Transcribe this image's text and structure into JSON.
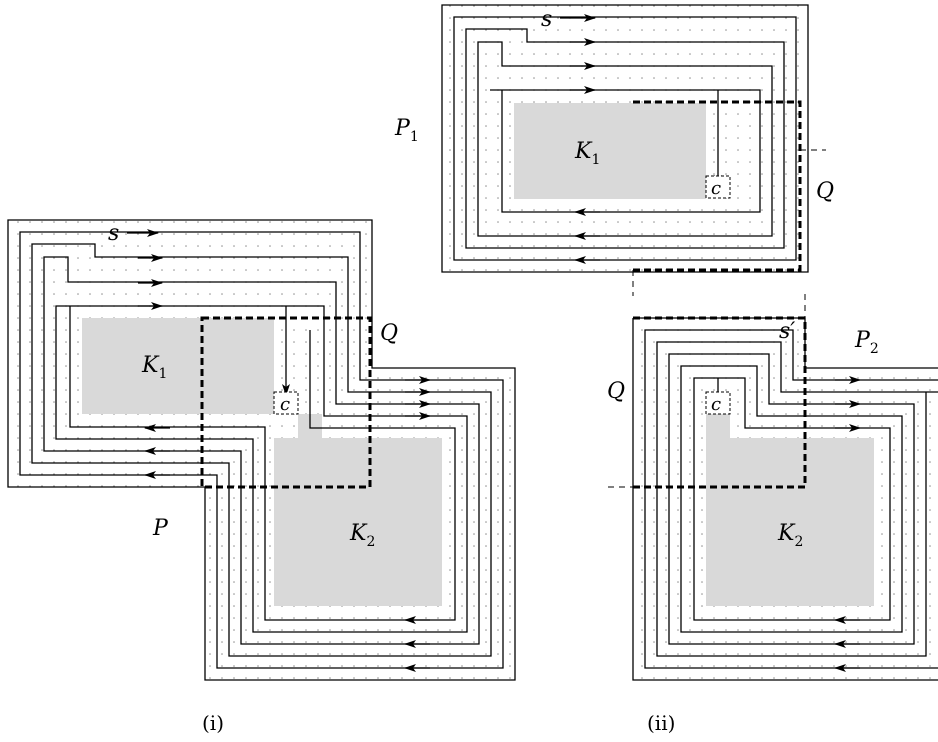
{
  "colors": {
    "shaded_region": "#d9d9d9",
    "lines": "#000000",
    "dot_grid": "#888888",
    "background": "#ffffff"
  },
  "panel_i": {
    "caption": "(i)",
    "polygon_label": "P",
    "q_label": "Q",
    "start_label": "s",
    "end_label": "c",
    "region1": {
      "base": "K",
      "sub": "1"
    },
    "region2": {
      "base": "K",
      "sub": "2"
    }
  },
  "panel_ii": {
    "caption": "(ii)",
    "top": {
      "polygon": {
        "base": "P",
        "sub": "1"
      },
      "q_label": "Q",
      "start_label": "s",
      "end_label": "c",
      "region": {
        "base": "K",
        "sub": "1"
      }
    },
    "bottom": {
      "polygon": {
        "base": "P",
        "sub": "2"
      },
      "q_label": "Q",
      "start_label": "s′",
      "end_label": "c",
      "region": {
        "base": "K",
        "sub": "2"
      }
    }
  }
}
